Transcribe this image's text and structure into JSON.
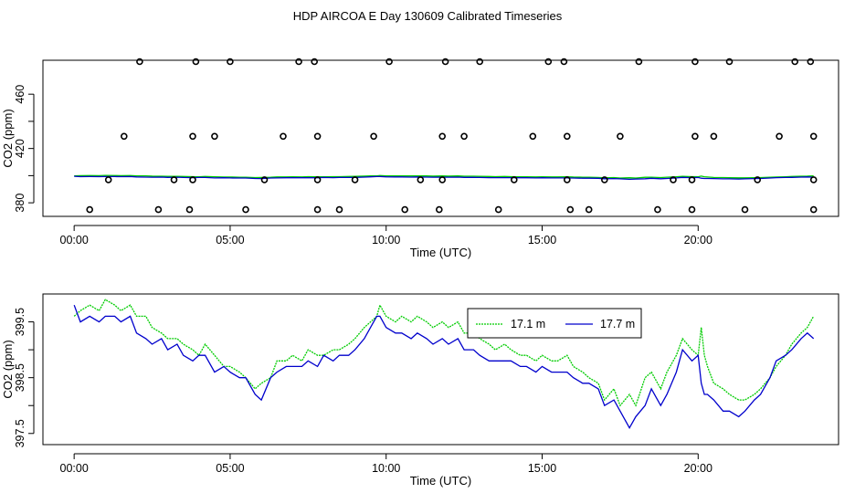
{
  "title": "HDP AIRCOA E  Day 130609  Calibrated Timeseries",
  "chart_data": [
    {
      "type": "scatter+line",
      "xlabel": "Time (UTC)",
      "ylabel": "CO2 (ppm)",
      "xlim": [
        -1,
        24.5
      ],
      "ylim": [
        370,
        485
      ],
      "x_ticks": [
        0,
        5,
        10,
        15,
        20
      ],
      "x_tick_labels": [
        "00:00",
        "05:00",
        "10:00",
        "15:00",
        "20:00"
      ],
      "y_ticks": [
        380,
        420,
        460
      ],
      "y_tick_labels": [
        "380",
        "420",
        "460"
      ],
      "grid": false,
      "series": [
        {
          "kind": "points",
          "color": "#000000",
          "points": [
            [
              0.5,
              375
            ],
            [
              2.7,
              375
            ],
            [
              3.7,
              375
            ],
            [
              5.5,
              375
            ],
            [
              7.8,
              375
            ],
            [
              8.5,
              375
            ],
            [
              10.6,
              375
            ],
            [
              11.7,
              375
            ],
            [
              13.6,
              375
            ],
            [
              15.9,
              375
            ],
            [
              16.5,
              375
            ],
            [
              18.7,
              375
            ],
            [
              19.8,
              375
            ],
            [
              21.5,
              375
            ],
            [
              23.7,
              375
            ],
            [
              1.1,
              397
            ],
            [
              3.2,
              397
            ],
            [
              3.8,
              397
            ],
            [
              6.1,
              397
            ],
            [
              7.8,
              397
            ],
            [
              9.0,
              397
            ],
            [
              11.1,
              397
            ],
            [
              11.8,
              397
            ],
            [
              14.1,
              397
            ],
            [
              15.8,
              397
            ],
            [
              17.0,
              397
            ],
            [
              19.2,
              397
            ],
            [
              19.8,
              397
            ],
            [
              21.9,
              397
            ],
            [
              23.7,
              397
            ],
            [
              1.6,
              429
            ],
            [
              3.8,
              429
            ],
            [
              4.5,
              429
            ],
            [
              6.7,
              429
            ],
            [
              7.8,
              429
            ],
            [
              9.6,
              429
            ],
            [
              11.8,
              429
            ],
            [
              12.5,
              429
            ],
            [
              14.7,
              429
            ],
            [
              15.8,
              429
            ],
            [
              17.5,
              429
            ],
            [
              19.9,
              429
            ],
            [
              20.5,
              429
            ],
            [
              22.6,
              429
            ],
            [
              23.7,
              429
            ],
            [
              2.1,
              484
            ],
            [
              3.9,
              484
            ],
            [
              5.0,
              484
            ],
            [
              7.2,
              484
            ],
            [
              7.7,
              484
            ],
            [
              10.1,
              484
            ],
            [
              11.9,
              484
            ],
            [
              13.0,
              484
            ],
            [
              15.2,
              484
            ],
            [
              15.7,
              484
            ],
            [
              18.1,
              484
            ],
            [
              19.9,
              484
            ],
            [
              21.0,
              484
            ],
            [
              23.1,
              484
            ],
            [
              23.6,
              484
            ]
          ]
        },
        {
          "kind": "line",
          "color": "#00cc00",
          "values_note": "same as bottom panel green, ~399 ppm"
        },
        {
          "kind": "line",
          "color": "#0000cc",
          "values_note": "same as bottom panel blue, ~399 ppm"
        }
      ]
    },
    {
      "type": "line",
      "xlabel": "Time (UTC)",
      "ylabel": "CO2 (ppm)",
      "xlim": [
        -1,
        24.5
      ],
      "ylim": [
        397.3,
        400.0
      ],
      "x_ticks": [
        0,
        5,
        10,
        15,
        20
      ],
      "x_tick_labels": [
        "00:00",
        "05:00",
        "10:00",
        "15:00",
        "20:00"
      ],
      "y_ticks": [
        397.5,
        398.5,
        399.5
      ],
      "y_tick_labels": [
        "397.5",
        "398.5",
        "399.5"
      ],
      "grid": false,
      "legend_position": "top-right",
      "series": [
        {
          "name": "17.1 m",
          "color": "#00cc00",
          "x": [
            0,
            0.2,
            0.5,
            0.8,
            1.0,
            1.3,
            1.5,
            1.8,
            2.0,
            2.3,
            2.5,
            2.8,
            3.0,
            3.3,
            3.5,
            3.8,
            4.0,
            4.2,
            4.5,
            4.8,
            5.0,
            5.3,
            5.5,
            5.8,
            6.0,
            6.3,
            6.5,
            6.8,
            7.0,
            7.3,
            7.5,
            7.8,
            8.0,
            8.3,
            8.5,
            8.8,
            9.0,
            9.3,
            9.5,
            9.7,
            9.8,
            10.0,
            10.3,
            10.5,
            10.8,
            11.0,
            11.3,
            11.5,
            11.8,
            12.0,
            12.3,
            12.5,
            12.8,
            13.0,
            13.3,
            13.5,
            13.8,
            14.0,
            14.3,
            14.5,
            14.8,
            15.0,
            15.3,
            15.5,
            15.8,
            16.0,
            16.3,
            16.5,
            16.8,
            17.0,
            17.3,
            17.5,
            17.8,
            18.0,
            18.3,
            18.5,
            18.8,
            19.0,
            19.3,
            19.5,
            19.8,
            20.0,
            20.1,
            20.2,
            20.3,
            20.5,
            20.8,
            21.0,
            21.3,
            21.5,
            21.8,
            22.0,
            22.3,
            22.5,
            22.8,
            23.0,
            23.3,
            23.5,
            23.7
          ],
          "y": [
            399.6,
            399.7,
            399.8,
            399.7,
            399.9,
            399.8,
            399.7,
            399.8,
            399.6,
            399.6,
            399.4,
            399.3,
            399.2,
            399.2,
            399.1,
            399.0,
            398.9,
            399.1,
            398.9,
            398.7,
            398.7,
            398.6,
            398.5,
            398.3,
            398.4,
            398.5,
            398.8,
            398.8,
            398.9,
            398.8,
            399.0,
            398.9,
            398.9,
            399.0,
            399.0,
            399.1,
            399.2,
            399.4,
            399.5,
            399.6,
            399.8,
            399.6,
            399.5,
            399.6,
            399.5,
            399.6,
            399.5,
            399.4,
            399.5,
            399.4,
            399.5,
            399.3,
            399.3,
            399.2,
            399.1,
            399.0,
            399.1,
            399.0,
            398.9,
            398.9,
            398.8,
            398.9,
            398.8,
            398.8,
            398.9,
            398.7,
            398.6,
            398.5,
            398.4,
            398.1,
            398.3,
            398.0,
            398.2,
            398.0,
            398.5,
            398.6,
            398.3,
            398.6,
            398.9,
            399.2,
            399.0,
            398.9,
            399.4,
            398.9,
            398.7,
            398.4,
            398.3,
            398.2,
            398.1,
            398.1,
            398.2,
            398.3,
            398.5,
            398.7,
            398.9,
            399.1,
            399.3,
            399.4,
            399.6
          ]
        },
        {
          "name": "17.7 m",
          "color": "#0000cc",
          "x": [
            0,
            0.2,
            0.5,
            0.8,
            1.0,
            1.3,
            1.5,
            1.8,
            2.0,
            2.3,
            2.5,
            2.8,
            3.0,
            3.3,
            3.5,
            3.8,
            4.0,
            4.2,
            4.5,
            4.8,
            5.0,
            5.3,
            5.5,
            5.8,
            6.0,
            6.3,
            6.5,
            6.8,
            7.0,
            7.3,
            7.5,
            7.8,
            8.0,
            8.3,
            8.5,
            8.8,
            9.0,
            9.3,
            9.5,
            9.7,
            9.8,
            10.0,
            10.3,
            10.5,
            10.8,
            11.0,
            11.3,
            11.5,
            11.8,
            12.0,
            12.3,
            12.5,
            12.8,
            13.0,
            13.3,
            13.5,
            13.8,
            14.0,
            14.3,
            14.5,
            14.8,
            15.0,
            15.3,
            15.5,
            15.8,
            16.0,
            16.3,
            16.5,
            16.8,
            17.0,
            17.3,
            17.5,
            17.8,
            18.0,
            18.3,
            18.5,
            18.8,
            19.0,
            19.3,
            19.5,
            19.8,
            20.0,
            20.1,
            20.2,
            20.3,
            20.5,
            20.8,
            21.0,
            21.3,
            21.5,
            21.8,
            22.0,
            22.3,
            22.5,
            22.8,
            23.0,
            23.3,
            23.5,
            23.7
          ],
          "y": [
            399.8,
            399.5,
            399.6,
            399.5,
            399.6,
            399.6,
            399.5,
            399.6,
            399.3,
            399.2,
            399.1,
            399.2,
            399.0,
            399.1,
            398.9,
            398.8,
            398.9,
            398.9,
            398.6,
            398.7,
            398.6,
            398.5,
            398.5,
            398.2,
            398.1,
            398.5,
            398.6,
            398.7,
            398.7,
            398.7,
            398.8,
            398.7,
            398.9,
            398.8,
            398.9,
            398.9,
            399.0,
            399.2,
            399.4,
            399.6,
            399.6,
            399.4,
            399.3,
            399.3,
            399.2,
            399.3,
            399.2,
            399.1,
            399.2,
            399.1,
            399.2,
            399.0,
            399.0,
            398.9,
            398.8,
            398.8,
            398.8,
            398.8,
            398.7,
            398.7,
            398.6,
            398.7,
            398.6,
            398.6,
            398.6,
            398.5,
            398.4,
            398.4,
            398.3,
            398.0,
            398.1,
            397.9,
            397.6,
            397.8,
            398.0,
            398.3,
            398.0,
            398.2,
            398.6,
            399.0,
            398.8,
            398.9,
            398.4,
            398.2,
            398.2,
            398.1,
            397.9,
            397.9,
            397.8,
            397.9,
            398.1,
            398.2,
            398.5,
            398.8,
            398.9,
            399.0,
            399.2,
            399.3,
            399.2
          ]
        }
      ]
    }
  ]
}
